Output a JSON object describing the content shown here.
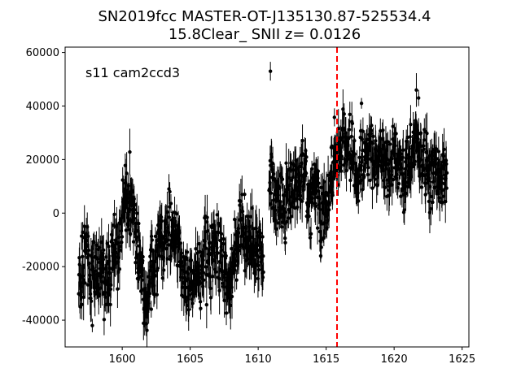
{
  "chart_data": {
    "type": "scatter",
    "title_lines": [
      "SN2019fcc  MASTER-OT-J135130.87-525534.4",
      "15.8Clear_ SNII z= 0.0126"
    ],
    "annotation": "s11 cam2ccd3",
    "xlabel": "",
    "ylabel": "",
    "xlim": [
      1595.8,
      1625.5
    ],
    "ylim": [
      -50000,
      62000
    ],
    "x_ticks": [
      1600,
      1605,
      1610,
      1615,
      1620,
      1625
    ],
    "y_ticks": [
      -40000,
      -20000,
      0,
      20000,
      40000,
      60000
    ],
    "marker_color": "#000000",
    "vline": {
      "x": 1615.8,
      "color": "#ff0000",
      "style": "dashed"
    },
    "grid": false,
    "series": [
      {
        "segments": [
          {
            "x_start": 1596.8,
            "x_end": 1610.4,
            "step": 0.021,
            "knots": [
              [
                1596.8,
                -20000
              ],
              [
                1597.3,
                -18000
              ],
              [
                1597.8,
                -25000
              ],
              [
                1598.3,
                -18000
              ],
              [
                1598.7,
                -28000
              ],
              [
                1599.1,
                -18000
              ],
              [
                1599.6,
                -15000
              ],
              [
                1600.0,
                -10000
              ],
              [
                1600.2,
                10000
              ],
              [
                1600.5,
                5000
              ],
              [
                1600.9,
                0
              ],
              [
                1601.2,
                -17000
              ],
              [
                1601.6,
                -28000
              ],
              [
                1601.8,
                -35000
              ],
              [
                1602.2,
                -20000
              ],
              [
                1602.7,
                -12000
              ],
              [
                1603.2,
                -10000
              ],
              [
                1603.7,
                -5000
              ],
              [
                1604.0,
                -8000
              ],
              [
                1604.4,
                -20000
              ],
              [
                1604.8,
                -28000
              ],
              [
                1605.2,
                -25000
              ],
              [
                1605.7,
                -20000
              ],
              [
                1606.3,
                -18000
              ],
              [
                1607.0,
                -10000
              ],
              [
                1607.5,
                -22000
              ],
              [
                1608.0,
                -25000
              ],
              [
                1608.4,
                -10000
              ],
              [
                1608.8,
                -5000
              ],
              [
                1609.2,
                -12000
              ],
              [
                1609.7,
                -10000
              ],
              [
                1610.1,
                -15000
              ],
              [
                1610.4,
                -20000
              ]
            ],
            "amplitude": 6500,
            "errors": [
              3000,
              9000
            ]
          },
          {
            "x_start": 1610.8,
            "x_end": 1623.9,
            "step": 0.021,
            "knots": [
              [
                1610.8,
                8000
              ],
              [
                1611.1,
                15000
              ],
              [
                1611.4,
                0
              ],
              [
                1611.8,
                5000
              ],
              [
                1612.2,
                2000
              ],
              [
                1612.6,
                12000
              ],
              [
                1613.0,
                10000
              ],
              [
                1613.4,
                14000
              ],
              [
                1613.8,
                5000
              ],
              [
                1614.2,
                8000
              ],
              [
                1614.6,
                2000
              ],
              [
                1614.9,
                0
              ],
              [
                1615.2,
                10000
              ],
              [
                1615.5,
                18000
              ],
              [
                1615.8,
                22000
              ],
              [
                1616.1,
                25000
              ],
              [
                1616.5,
                27000
              ],
              [
                1616.9,
                20000
              ],
              [
                1617.3,
                12000
              ],
              [
                1617.6,
                18000
              ],
              [
                1618.0,
                25000
              ],
              [
                1618.4,
                22000
              ],
              [
                1618.8,
                18000
              ],
              [
                1619.2,
                20000
              ],
              [
                1619.6,
                15000
              ],
              [
                1620.0,
                25000
              ],
              [
                1620.4,
                18000
              ],
              [
                1620.8,
                12000
              ],
              [
                1621.2,
                20000
              ],
              [
                1621.6,
                28000
              ],
              [
                1621.9,
                22000
              ],
              [
                1622.3,
                15000
              ],
              [
                1622.7,
                12000
              ],
              [
                1623.1,
                18000
              ],
              [
                1623.5,
                12000
              ],
              [
                1623.9,
                10000
              ]
            ],
            "amplitude": 6000,
            "errors": [
              3000,
              8000
            ]
          }
        ],
        "outliers": [
          {
            "x": 1610.9,
            "y": 53000,
            "err": 3500
          },
          {
            "x": 1617.6,
            "y": 41000,
            "err": 2000
          },
          {
            "x": 1614.6,
            "y": -16000,
            "err": 2500
          },
          {
            "x": 1609.0,
            "y": 7000,
            "err": 2000
          },
          {
            "x": 1597.8,
            "y": -42000,
            "err": 2500
          },
          {
            "x": 1601.6,
            "y": -36000,
            "err": 2000
          },
          {
            "x": 1621.8,
            "y": 43000,
            "err": 3000
          },
          {
            "x": 1623.5,
            "y": 4000,
            "err": 2000
          }
        ]
      }
    ]
  }
}
